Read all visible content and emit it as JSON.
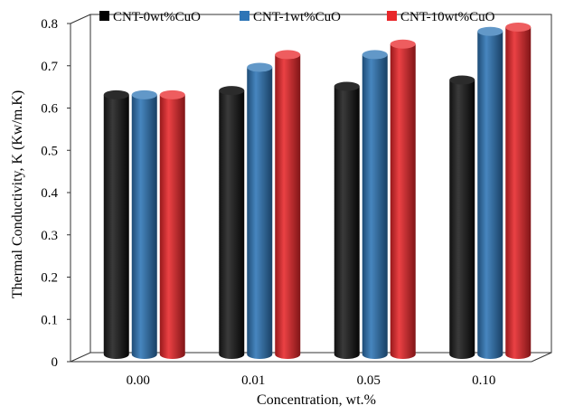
{
  "chart_data": {
    "type": "bar",
    "style": "3d-cylinder",
    "categories": [
      "0.00",
      "0.01",
      "0.05",
      "0.10"
    ],
    "series": [
      {
        "name": "CNT-0wt%CuO",
        "color": "#000000",
        "values": [
          0.61,
          0.62,
          0.63,
          0.645
        ]
      },
      {
        "name": "CNT-1wt%CuO",
        "color": "#2e75b6",
        "values": [
          0.61,
          0.675,
          0.705,
          0.76
        ]
      },
      {
        "name": "CNT-10wt%CuO",
        "color": "#e8272a",
        "values": [
          0.61,
          0.705,
          0.73,
          0.77
        ]
      }
    ],
    "xlabel": "Concentration, wt.%",
    "ylabel": "Thermal Conductivity, K (Kw/m.K)",
    "ylim": [
      0,
      0.8
    ],
    "yticks": [
      "0",
      "0.1",
      "0.2",
      "0.3",
      "0.4",
      "0.5",
      "0.6",
      "0.7",
      "0.8"
    ],
    "legend_position": "top",
    "grid": false
  }
}
